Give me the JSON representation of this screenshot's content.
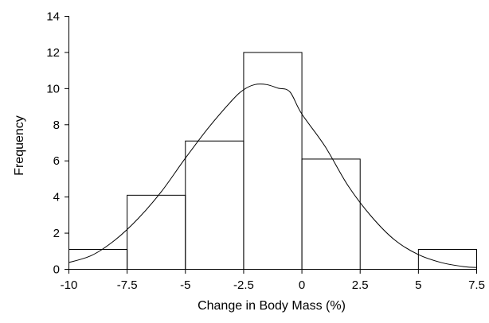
{
  "chart_data": {
    "type": "bar",
    "xlabel": "Change in Body Mass (%)",
    "ylabel": "Frequency",
    "xlim": [
      -10,
      7.5
    ],
    "ylim": [
      0,
      14
    ],
    "x_ticks": [
      -10,
      -7.5,
      -5,
      -2.5,
      0,
      2.5,
      5,
      7.5
    ],
    "x_tick_labels": [
      "-10",
      "-7.5",
      "-5",
      "-2.5",
      "0",
      "2.5",
      "5",
      "7.5"
    ],
    "y_ticks": [
      0,
      2,
      4,
      6,
      8,
      10,
      12,
      14
    ],
    "y_tick_labels": [
      "0",
      "2",
      "4",
      "6",
      "8",
      "10",
      "12",
      "14"
    ],
    "bins": [
      {
        "x0": -10,
        "x1": -7.5,
        "value": 1.1
      },
      {
        "x0": -7.5,
        "x1": -5,
        "value": 4.1
      },
      {
        "x0": -5,
        "x1": -2.5,
        "value": 7.1
      },
      {
        "x0": -2.5,
        "x1": 0,
        "value": 12
      },
      {
        "x0": 0,
        "x1": 2.5,
        "value": 6.1
      },
      {
        "x0": 2.5,
        "x1": 5,
        "value": 0
      },
      {
        "x0": 5,
        "x1": 7.5,
        "value": 1.1
      }
    ],
    "curve": {
      "x": [
        -10,
        -9,
        -8,
        -7,
        -6,
        -5,
        -4,
        -3,
        -2.5,
        -2,
        -1.5,
        -1,
        -0.5,
        0,
        1,
        2,
        3,
        4,
        5,
        6,
        7,
        7.5
      ],
      "y": [
        0.35,
        0.75,
        1.6,
        2.8,
        4.3,
        6.1,
        7.8,
        9.3,
        9.9,
        10.2,
        10.2,
        10.0,
        9.8,
        8.6,
        6.8,
        4.6,
        2.9,
        1.6,
        0.8,
        0.35,
        0.12,
        0.08
      ]
    },
    "grid": false
  }
}
